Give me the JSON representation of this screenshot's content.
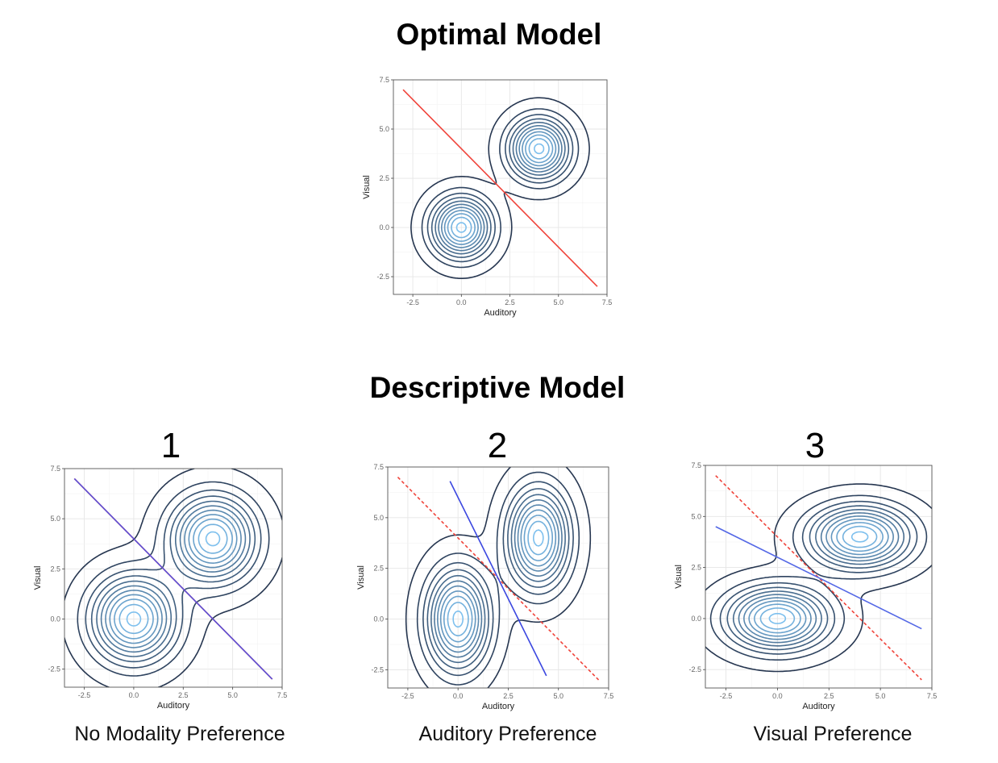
{
  "titles": {
    "optimal": "Optimal Model",
    "descriptive": "Descriptive Model"
  },
  "chart_data": [
    {
      "id": "optimal",
      "type": "contour",
      "title": "",
      "xlabel": "Auditory",
      "ylabel": "Visual",
      "xlim": [
        -3.5,
        7.5
      ],
      "ylim": [
        -3.4,
        7.5
      ],
      "ticks": [
        -2.5,
        0.0,
        2.5,
        5.0,
        7.5
      ],
      "tick_labels": [
        "-2.5",
        "0.0",
        "2.5",
        "5.0",
        "7.5"
      ],
      "grid": true,
      "distributions": [
        {
          "center": [
            0,
            0
          ],
          "sx": 1.0,
          "sy": 1.0
        },
        {
          "center": [
            4,
            4
          ],
          "sx": 1.0,
          "sy": 1.0
        }
      ],
      "boundaries": [
        {
          "from": [
            -3,
            7
          ],
          "to": [
            7,
            -3
          ],
          "color": "#f0433a",
          "style": "solid"
        }
      ]
    },
    {
      "id": "panel-1",
      "type": "contour",
      "number": "1",
      "caption": "No Modality Preference",
      "xlabel": "Auditory",
      "ylabel": "Visual",
      "xlim": [
        -3.5,
        7.5
      ],
      "ylim": [
        -3.4,
        7.5
      ],
      "ticks": [
        -2.5,
        0.0,
        2.5,
        5.0,
        7.5
      ],
      "tick_labels": [
        "-2.5",
        "0.0",
        "2.5",
        "5.0",
        "7.5"
      ],
      "grid": true,
      "distributions": [
        {
          "center": [
            0,
            0
          ],
          "sx": 1.4,
          "sy": 1.4
        },
        {
          "center": [
            4,
            4
          ],
          "sx": 1.4,
          "sy": 1.4
        }
      ],
      "boundaries": [
        {
          "from": [
            -3,
            7
          ],
          "to": [
            7,
            -3
          ],
          "color": "#f0433a",
          "style": "solid"
        },
        {
          "from": [
            -3,
            7
          ],
          "to": [
            7,
            -3
          ],
          "color": "#5a4fd6",
          "style": "solid"
        }
      ]
    },
    {
      "id": "panel-2",
      "type": "contour",
      "number": "2",
      "caption": "Auditory Preference",
      "xlabel": "Auditory",
      "ylabel": "Visual",
      "xlim": [
        -3.5,
        7.5
      ],
      "ylim": [
        -3.4,
        7.5
      ],
      "ticks": [
        -2.5,
        0.0,
        2.5,
        5.0,
        7.5
      ],
      "tick_labels": [
        "-2.5",
        "0.0",
        "2.5",
        "5.0",
        "7.5"
      ],
      "grid": true,
      "distributions": [
        {
          "center": [
            0,
            0
          ],
          "sx": 1.0,
          "sy": 1.6
        },
        {
          "center": [
            4,
            4
          ],
          "sx": 1.0,
          "sy": 1.6
        }
      ],
      "boundaries": [
        {
          "from": [
            -3,
            7
          ],
          "to": [
            7,
            -3
          ],
          "color": "#f0433a",
          "style": "dashed"
        },
        {
          "from": [
            -0.4,
            6.8
          ],
          "to": [
            4.4,
            -2.8
          ],
          "color": "#3b47e0",
          "style": "solid"
        }
      ]
    },
    {
      "id": "panel-3",
      "type": "contour",
      "number": "3",
      "caption": "Visual Preference",
      "xlabel": "Auditory",
      "ylabel": "Visual",
      "xlim": [
        -3.5,
        7.5
      ],
      "ylim": [
        -3.4,
        7.5
      ],
      "ticks": [
        -2.5,
        0.0,
        2.5,
        5.0,
        7.5
      ],
      "tick_labels": [
        "-2.5",
        "0.0",
        "2.5",
        "5.0",
        "7.5"
      ],
      "grid": true,
      "distributions": [
        {
          "center": [
            0,
            0
          ],
          "sx": 1.6,
          "sy": 1.0
        },
        {
          "center": [
            4,
            4
          ],
          "sx": 1.6,
          "sy": 1.0
        }
      ],
      "boundaries": [
        {
          "from": [
            -3,
            7
          ],
          "to": [
            7,
            -3
          ],
          "color": "#f0433a",
          "style": "dashed"
        },
        {
          "from": [
            -3,
            4.5
          ],
          "to": [
            7,
            -0.5
          ],
          "color": "#5468e6",
          "style": "solid"
        }
      ]
    }
  ]
}
